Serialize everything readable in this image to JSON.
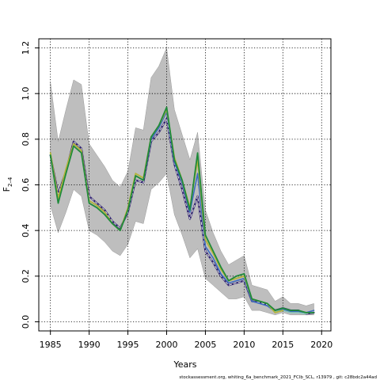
{
  "chart_data": {
    "type": "line",
    "xlabel": "Years",
    "ylabel_main": "F",
    "ylabel_sub": "2–4",
    "xlim": [
      1983.5,
      2021.2
    ],
    "ylim": [
      -0.04,
      1.24
    ],
    "xticks": [
      1985,
      1990,
      1995,
      2000,
      2005,
      2010,
      2015,
      2020
    ],
    "yticks": [
      0.0,
      0.2,
      0.4,
      0.6,
      0.8,
      1.0,
      1.2
    ],
    "ytick_labels": [
      "0.0",
      "0.2",
      "0.4",
      "0.6",
      "0.8",
      "1.0",
      "1.2"
    ],
    "grid": true,
    "caption": "stockassessment.org,  whiting_6a_benchmark_2021_FClb_SCL,  r13979 ,  git: c28bdc2a44ad",
    "band": {
      "color": "#bebebe",
      "years": [
        1985,
        1986,
        1987,
        1988,
        1989,
        1990,
        1991,
        1992,
        1993,
        1994,
        1995,
        1996,
        1997,
        1998,
        1999,
        2000,
        2001,
        2002,
        2003,
        2004,
        2005,
        2006,
        2007,
        2008,
        2009,
        2010,
        2011,
        2012,
        2013,
        2014,
        2015,
        2016,
        2017,
        2018,
        2019
      ],
      "lower": [
        0.51,
        0.39,
        0.48,
        0.58,
        0.55,
        0.4,
        0.38,
        0.35,
        0.31,
        0.29,
        0.34,
        0.44,
        0.43,
        0.58,
        0.61,
        0.65,
        0.47,
        0.38,
        0.28,
        0.32,
        0.19,
        0.16,
        0.13,
        0.1,
        0.1,
        0.11,
        0.05,
        0.05,
        0.04,
        0.03,
        0.04,
        0.03,
        0.03,
        0.03,
        0.03
      ],
      "upper": [
        1.05,
        0.79,
        0.93,
        1.06,
        1.04,
        0.78,
        0.73,
        0.68,
        0.62,
        0.59,
        0.66,
        0.85,
        0.84,
        1.07,
        1.12,
        1.2,
        0.93,
        0.82,
        0.71,
        0.83,
        0.49,
        0.39,
        0.31,
        0.25,
        0.27,
        0.29,
        0.16,
        0.15,
        0.14,
        0.09,
        0.11,
        0.08,
        0.08,
        0.07,
        0.08
      ]
    },
    "series": [
      {
        "color": "#2b1d6e",
        "width": 2.2,
        "dash": "",
        "x": [
          1985,
          1986,
          1987,
          1988,
          1989,
          1990,
          1991,
          1992,
          1993,
          1994,
          1995,
          1996,
          1997,
          1998,
          1999,
          2000,
          2001,
          2002,
          2003,
          2004,
          2005,
          2006,
          2007,
          2008,
          2009,
          2010,
          2011,
          2012,
          2013,
          2014,
          2015,
          2016,
          2017,
          2018,
          2019
        ],
        "values": [
          0.73,
          0.56,
          0.66,
          0.79,
          0.76,
          0.55,
          0.52,
          0.49,
          0.44,
          0.41,
          0.48,
          0.62,
          0.61,
          0.79,
          0.83,
          0.89,
          0.69,
          0.58,
          0.45,
          0.55,
          0.31,
          0.26,
          0.2,
          0.16,
          0.17,
          0.18,
          0.09,
          0.085,
          0.075,
          0.05,
          0.06,
          0.05,
          0.05,
          0.035,
          0.04
        ]
      },
      {
        "color": "#e0e0e0",
        "width": 1.0,
        "dash": "3,3",
        "x": [
          1985,
          1986,
          1987,
          1988,
          1989,
          1990,
          1991,
          1992,
          1993,
          1994,
          1995,
          1996,
          1997,
          1998,
          1999,
          2000,
          2001,
          2002,
          2003,
          2004,
          2005,
          2006,
          2007,
          2008,
          2009,
          2010,
          2011,
          2012,
          2013,
          2014,
          2015,
          2016,
          2017,
          2018,
          2019
        ],
        "values": [
          0.73,
          0.56,
          0.66,
          0.79,
          0.76,
          0.55,
          0.52,
          0.49,
          0.44,
          0.41,
          0.48,
          0.62,
          0.61,
          0.79,
          0.83,
          0.89,
          0.69,
          0.58,
          0.45,
          0.55,
          0.31,
          0.26,
          0.2,
          0.16,
          0.17,
          0.18,
          0.09,
          0.085,
          0.075,
          0.05,
          0.06,
          0.05,
          0.05,
          0.035,
          0.04
        ]
      },
      {
        "color": "#3c6cc0",
        "width": 1.6,
        "dash": "",
        "x": [
          1985,
          1986,
          1987,
          1988,
          1989,
          1990,
          1991,
          1992,
          1993,
          1994,
          1995,
          1996,
          1997,
          1998,
          1999,
          2000,
          2001,
          2002,
          2003,
          2004,
          2005,
          2006,
          2007,
          2008,
          2009,
          2010,
          2011,
          2012,
          2013,
          2014,
          2015,
          2016,
          2017,
          2018,
          2019
        ],
        "values": [
          0.73,
          0.53,
          0.66,
          0.78,
          0.75,
          0.53,
          0.51,
          0.48,
          0.43,
          0.4,
          0.49,
          0.64,
          0.62,
          0.8,
          0.85,
          0.92,
          0.7,
          0.61,
          0.48,
          0.65,
          0.33,
          0.28,
          0.21,
          0.17,
          0.18,
          0.19,
          0.09,
          0.08,
          0.07,
          0.045,
          0.055,
          0.045,
          0.045,
          0.04,
          0.05
        ]
      },
      {
        "color": "#86c4b6",
        "width": 1.6,
        "dash": "",
        "x": [
          2014,
          2015,
          2016,
          2017,
          2018
        ],
        "values": [
          0.045,
          0.05,
          0.04,
          0.04,
          0.035
        ]
      },
      {
        "color": "#b5b53a",
        "width": 1.8,
        "dash": "",
        "x": [
          1985,
          1986,
          1987,
          1988,
          1989,
          1990,
          1991,
          1992,
          1993,
          1994,
          1995,
          1996,
          1997,
          1998,
          1999,
          2000,
          2001,
          2002,
          2003,
          2004,
          2005,
          2006,
          2007,
          2008,
          2009,
          2010,
          2011,
          2012,
          2013,
          2014,
          2015
        ],
        "values": [
          0.74,
          0.54,
          0.67,
          0.78,
          0.75,
          0.53,
          0.51,
          0.48,
          0.43,
          0.4,
          0.5,
          0.65,
          0.63,
          0.81,
          0.86,
          0.93,
          0.72,
          0.62,
          0.5,
          0.71,
          0.36,
          0.3,
          0.23,
          0.18,
          0.19,
          0.2,
          0.1,
          0.09,
          0.08,
          0.04,
          0.05
        ]
      },
      {
        "color": "#1f8a3a",
        "width": 1.8,
        "dash": "",
        "x": [
          1985,
          1986,
          1987,
          1988,
          1989,
          1990,
          1991,
          1992,
          1993,
          1994,
          1995,
          1996,
          1997,
          1998,
          1999,
          2000,
          2001,
          2002,
          2003,
          2004,
          2005,
          2006,
          2007,
          2008,
          2009,
          2010,
          2011,
          2012,
          2013,
          2014,
          2015,
          2016,
          2017,
          2018,
          2019
        ],
        "values": [
          0.73,
          0.52,
          0.65,
          0.77,
          0.74,
          0.52,
          0.5,
          0.47,
          0.43,
          0.4,
          0.49,
          0.64,
          0.62,
          0.81,
          0.86,
          0.94,
          0.71,
          0.62,
          0.49,
          0.74,
          0.38,
          0.31,
          0.24,
          0.18,
          0.2,
          0.21,
          0.1,
          0.09,
          0.08,
          0.05,
          0.06,
          0.05,
          0.05,
          0.04,
          0.04
        ]
      }
    ]
  }
}
